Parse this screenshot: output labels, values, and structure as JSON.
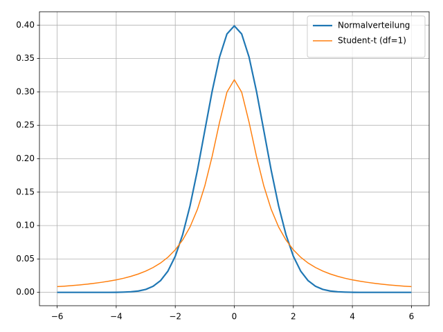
{
  "chart_data": {
    "type": "line",
    "x": [
      -6,
      -5.75,
      -5.5,
      -5.25,
      -5,
      -4.75,
      -4.5,
      -4.25,
      -4,
      -3.75,
      -3.5,
      -3.25,
      -3,
      -2.75,
      -2.5,
      -2.25,
      -2,
      -1.75,
      -1.5,
      -1.25,
      -1,
      -0.75,
      -0.5,
      -0.25,
      0,
      0.25,
      0.5,
      0.75,
      1,
      1.25,
      1.5,
      1.75,
      2,
      2.25,
      2.5,
      2.75,
      3,
      3.25,
      3.5,
      3.75,
      4,
      4.25,
      4.5,
      4.75,
      5,
      5.25,
      5.5,
      5.75,
      6
    ],
    "series": [
      {
        "name": "Normalverteilung",
        "color": "#1f77b4",
        "width": 2.2,
        "values": [
          0,
          0,
          0,
          0,
          0,
          0,
          0,
          0,
          0.0001,
          0.0004,
          0.0009,
          0.002,
          0.0044,
          0.0091,
          0.0175,
          0.0317,
          0.054,
          0.0863,
          0.1295,
          0.1826,
          0.242,
          0.3011,
          0.3521,
          0.3867,
          0.3989,
          0.3867,
          0.3521,
          0.3011,
          0.242,
          0.1826,
          0.1295,
          0.0863,
          0.054,
          0.0317,
          0.0175,
          0.0091,
          0.0044,
          0.002,
          0.0009,
          0.0004,
          0.0001,
          0,
          0,
          0,
          0,
          0,
          0,
          0,
          0
        ]
      },
      {
        "name": "Student-t (df=1)",
        "color": "#ff7f0e",
        "width": 1.5,
        "values": [
          0.0086,
          0.0093,
          0.0102,
          0.0111,
          0.0122,
          0.0135,
          0.015,
          0.0167,
          0.0187,
          0.0211,
          0.024,
          0.0275,
          0.0318,
          0.0372,
          0.0439,
          0.0525,
          0.0637,
          0.0784,
          0.0979,
          0.1242,
          0.1592,
          0.2037,
          0.2546,
          0.2996,
          0.3183,
          0.2996,
          0.2546,
          0.2037,
          0.1592,
          0.1242,
          0.0979,
          0.0784,
          0.0637,
          0.0525,
          0.0439,
          0.0372,
          0.0318,
          0.0275,
          0.024,
          0.0211,
          0.0187,
          0.0167,
          0.015,
          0.0135,
          0.0122,
          0.0111,
          0.0102,
          0.0093,
          0.0086
        ]
      }
    ],
    "xlim": [
      -6.6,
      6.6
    ],
    "ylim": [
      -0.02,
      0.42
    ],
    "xticks": [
      {
        "value": -6,
        "label": "−6"
      },
      {
        "value": -4,
        "label": "−4"
      },
      {
        "value": -2,
        "label": "−2"
      },
      0,
      2,
      4,
      6
    ],
    "yticks": [
      {
        "value": 0,
        "label": "0.00"
      },
      {
        "value": 0.05,
        "label": "0.05"
      },
      {
        "value": 0.1,
        "label": "0.10"
      },
      {
        "value": 0.15,
        "label": "0.15"
      },
      {
        "value": 0.2,
        "label": "0.20"
      },
      {
        "value": 0.25,
        "label": "0.25"
      },
      {
        "value": 0.3,
        "label": "0.30"
      },
      {
        "value": 0.35,
        "label": "0.35"
      },
      {
        "value": 0.4,
        "label": "0.40"
      }
    ],
    "grid": true,
    "legend": "upper-right"
  }
}
